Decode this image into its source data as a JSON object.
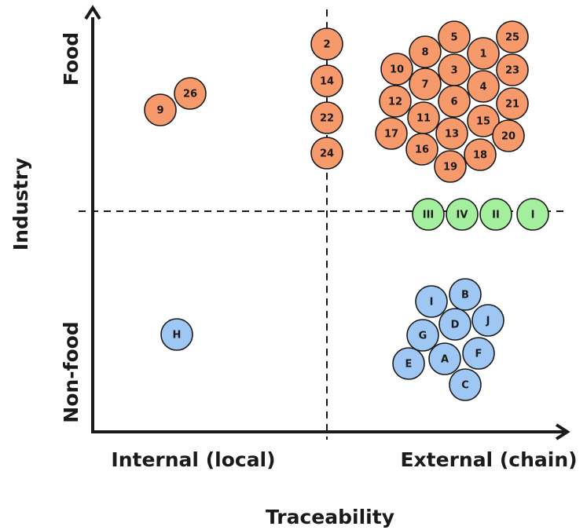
{
  "axes": {
    "x_title": "Traceability",
    "y_title": "Industry",
    "x_categories": [
      "Internal (local)",
      "External (chain)"
    ],
    "y_categories": [
      "Food",
      "Non-food"
    ]
  },
  "colors": {
    "food": "#f79a6b",
    "roman": "#a4ef9e",
    "nonfood": "#9ec7f3",
    "stroke": "#1a1a1a"
  },
  "groups": {
    "food_nodes": [
      "9",
      "26",
      "2",
      "14",
      "22",
      "24",
      "5",
      "25",
      "8",
      "1",
      "10",
      "3",
      "23",
      "7",
      "4",
      "12",
      "6",
      "21",
      "11",
      "15",
      "17",
      "13",
      "20",
      "16",
      "18",
      "19"
    ],
    "roman_nodes": [
      "III",
      "IV",
      "II",
      "I"
    ],
    "nonfood_nodes": [
      "H",
      "I",
      "B",
      "D",
      "J",
      "G",
      "A",
      "F",
      "E",
      "C"
    ]
  }
}
